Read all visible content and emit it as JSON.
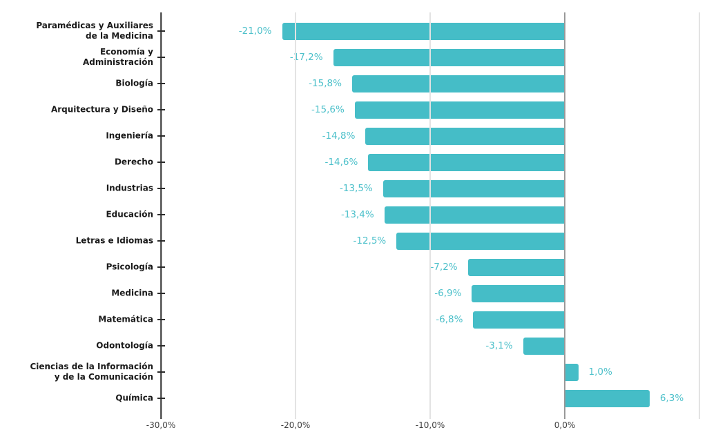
{
  "chart_data": {
    "type": "bar",
    "orientation": "horizontal",
    "title": "",
    "xlabel": "",
    "ylabel": "",
    "grid": true,
    "legend": false,
    "xlim": [
      -30,
      10
    ],
    "categories": [
      "Paramédicas y Auxiliares\nde la Medicina",
      "Economía y\nAdministración",
      "Biología",
      "Arquitectura y Diseño",
      "Ingeniería",
      "Derecho",
      "Industrias",
      "Educación",
      "Letras e Idiomas",
      "Psicología",
      "Medicina",
      "Matemática",
      "Odontología",
      "Ciencias de la Información\ny de la Comunicación",
      "Química"
    ],
    "values": [
      -21.0,
      -17.2,
      -15.8,
      -15.6,
      -14.8,
      -14.6,
      -13.5,
      -13.4,
      -12.5,
      -7.2,
      -6.9,
      -6.8,
      -3.1,
      1.0,
      6.3
    ],
    "value_labels": [
      "-21,0%",
      "-17,2%",
      "-15,8%",
      "-15,6%",
      "-14,8%",
      "-14,6%",
      "-13,5%",
      "-13,4%",
      "-12,5%",
      "-7,2%",
      "-6,9%",
      "-6,8%",
      "-3,1%",
      "1,0%",
      "6,3%"
    ],
    "x_ticks": [
      {
        "label": "-30,0%",
        "value": -30
      },
      {
        "label": "-20,0%",
        "value": -20
      },
      {
        "label": "-10,0%",
        "value": -10
      },
      {
        "label": "0,0%",
        "value": 0
      },
      {
        "label": "",
        "value": 10
      }
    ],
    "colors": {
      "bar": "#45BDC7",
      "value_label": "#4CC0CA",
      "category_label": "#1A1A1A",
      "axis_label": "#404040",
      "category_axis_line": "#2B2B2B",
      "zero_line": "#999999",
      "gridline": "#E3E3E3",
      "background": "#FFFFFF"
    }
  }
}
